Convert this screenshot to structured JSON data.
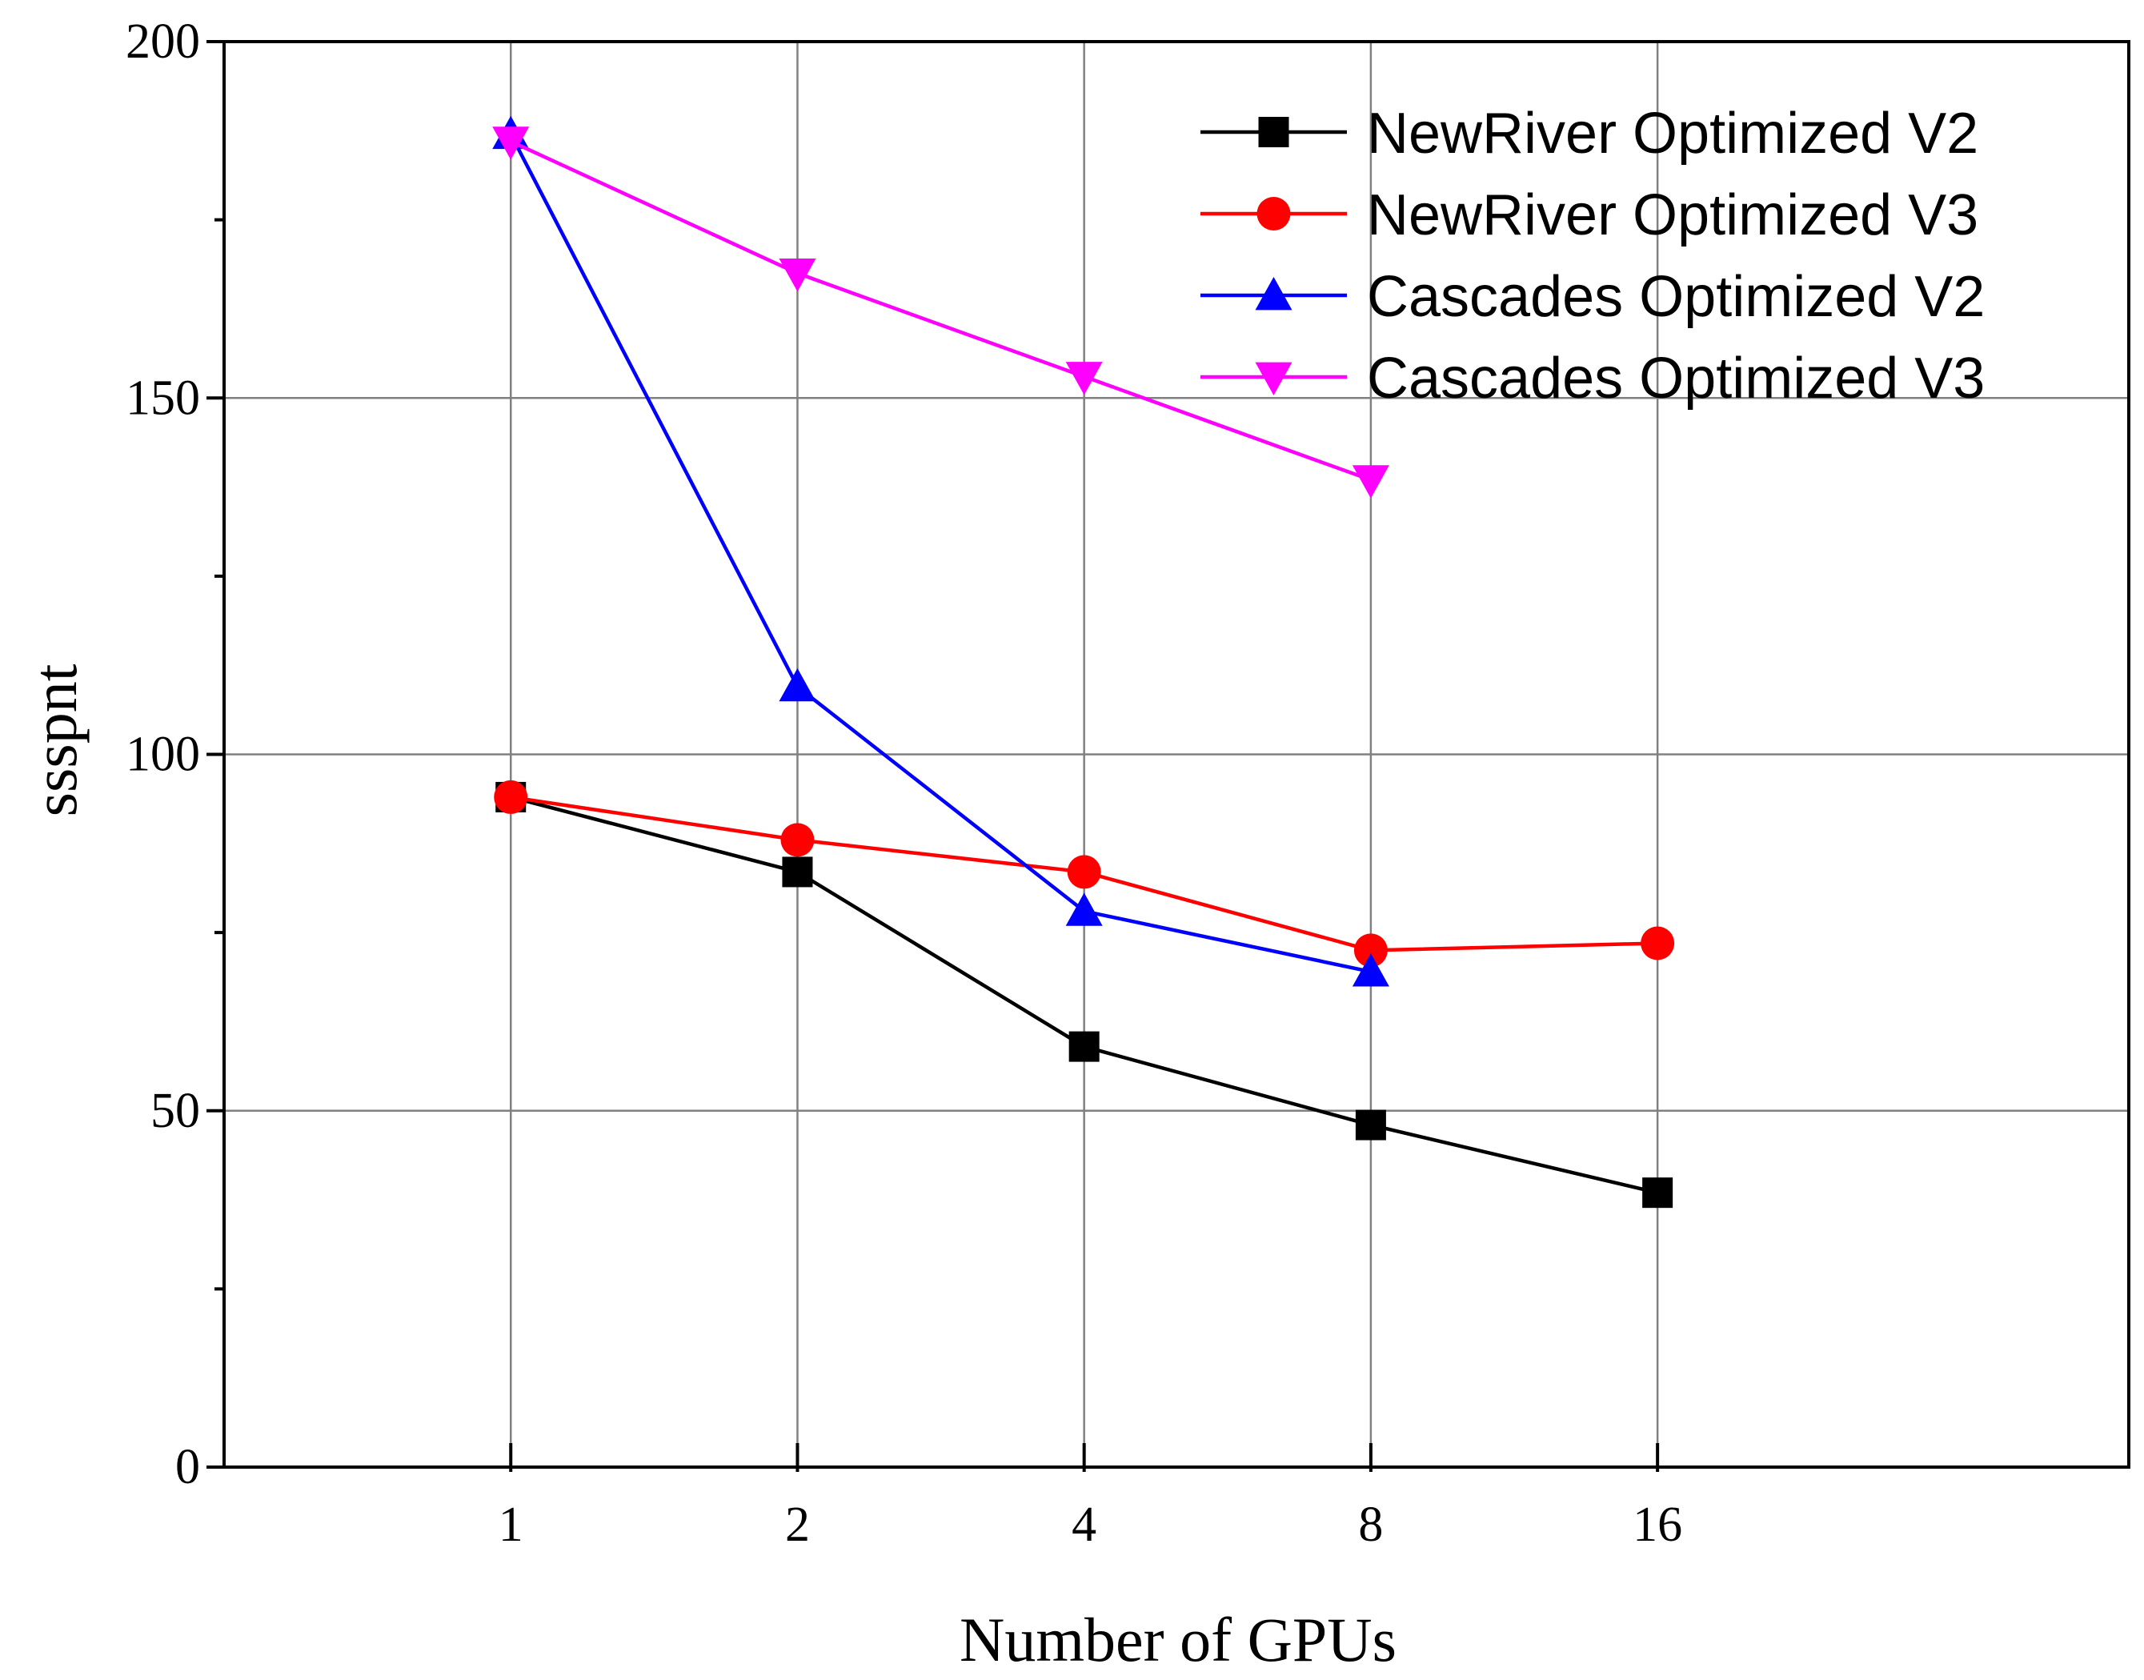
{
  "chart_data": {
    "type": "line",
    "title": "",
    "xlabel": "Number of GPUs",
    "ylabel": "ssspnt",
    "x_scale": "log2",
    "xlim": [
      0.5,
      50
    ],
    "ylim": [
      0,
      200
    ],
    "x_ticks": [
      1,
      2,
      4,
      8,
      16
    ],
    "y_ticks": [
      0,
      50,
      100,
      150,
      200
    ],
    "y_minor_ticks": [
      25,
      75,
      125,
      175
    ],
    "grid": true,
    "legend_position": "top-right",
    "series": [
      {
        "name": "NewRiver Optimized V2",
        "color": "#000000",
        "marker": "square",
        "x": [
          1,
          2,
          4,
          8,
          16
        ],
        "values": [
          94,
          83.5,
          59,
          48,
          38.5
        ]
      },
      {
        "name": "NewRiver Optimized V3",
        "color": "#ff0000",
        "marker": "circle",
        "x": [
          1,
          2,
          4,
          8,
          16
        ],
        "values": [
          94,
          88,
          83.5,
          72.5,
          73.5
        ]
      },
      {
        "name": "Cascades Optimized V2",
        "color": "#0000ff",
        "marker": "triangle-up",
        "x": [
          1,
          2,
          4,
          8
        ],
        "values": [
          187,
          109.5,
          78,
          69.5
        ]
      },
      {
        "name": "Cascades Optimized V3",
        "color": "#ff00ff",
        "marker": "triangle-down",
        "x": [
          1,
          2,
          4,
          8
        ],
        "values": [
          186,
          167.5,
          153,
          138.5
        ]
      }
    ]
  }
}
